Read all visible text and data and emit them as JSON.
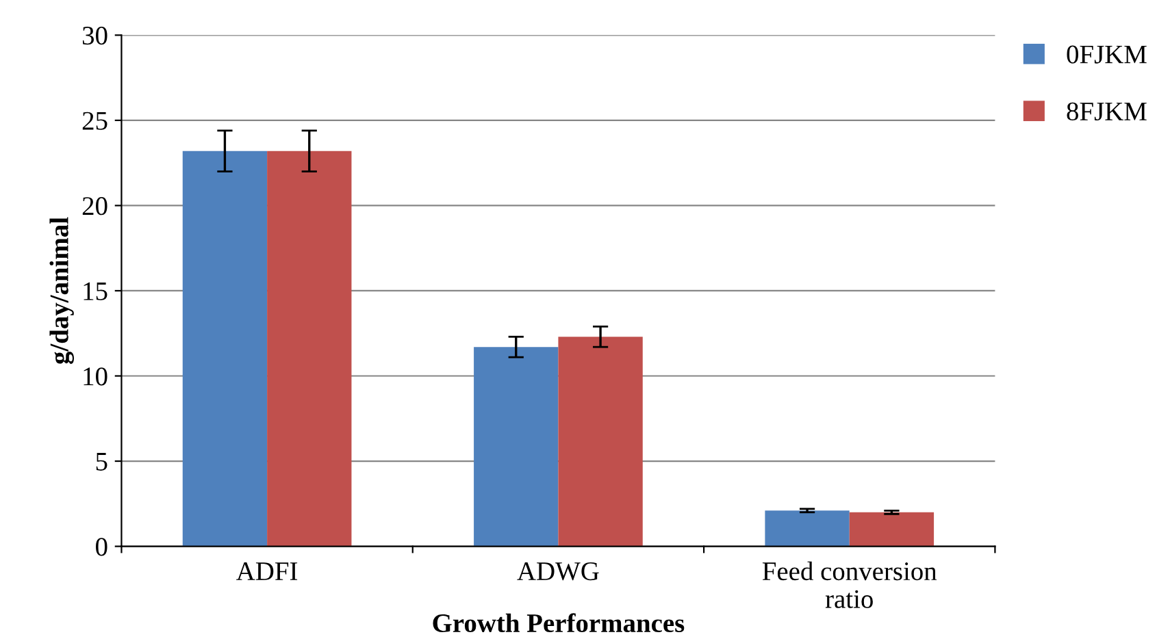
{
  "chart_data": {
    "type": "bar",
    "xlabel": "Growth Performances",
    "ylabel": "g/day/animal",
    "categories": [
      "ADFI",
      "ADWG",
      "Feed conversion\nratio"
    ],
    "series": [
      {
        "name": "0FJKM",
        "color": "#4f81bd",
        "values": [
          23.2,
          11.7,
          2.1
        ],
        "errors": [
          1.2,
          0.6,
          0.1
        ]
      },
      {
        "name": "8FJKM",
        "color": "#c0504d",
        "values": [
          23.2,
          12.3,
          2.0
        ],
        "errors": [
          1.2,
          0.6,
          0.1
        ]
      }
    ],
    "ylim": [
      0,
      30
    ],
    "yticks": [
      0,
      5,
      10,
      15,
      20,
      25,
      30
    ],
    "grid": "y",
    "legend": "top right"
  }
}
